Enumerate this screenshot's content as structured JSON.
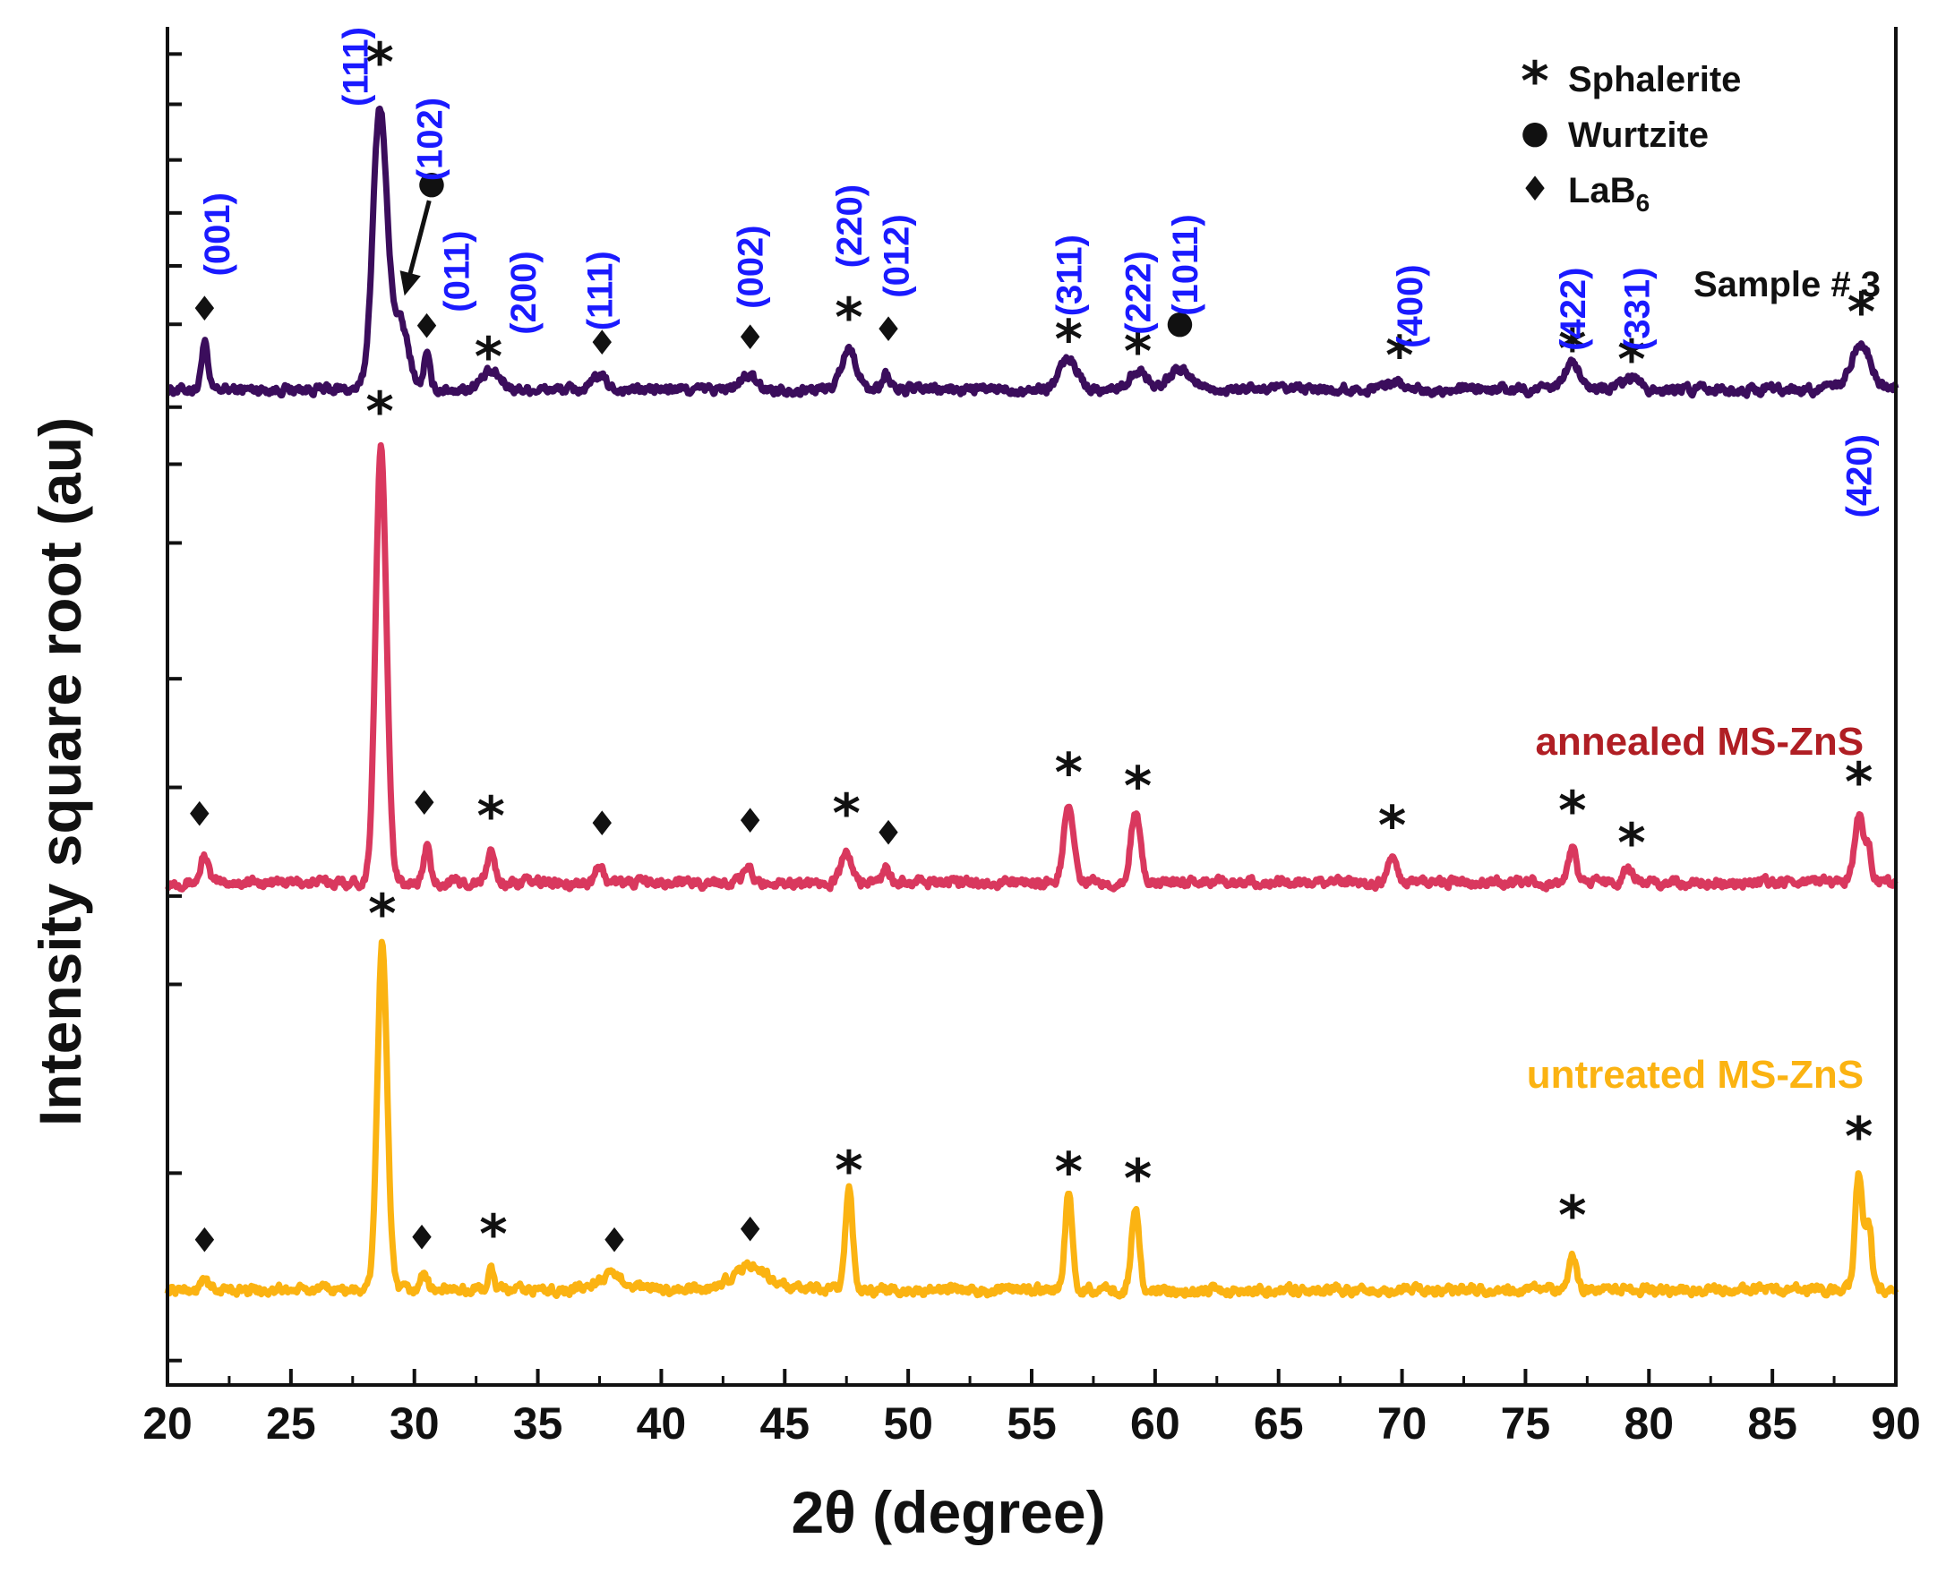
{
  "chart_data": {
    "type": "line",
    "title": "",
    "xlabel": "2θ (degree)",
    "ylabel": "Intensity square root (au)",
    "xlim": [
      20,
      90
    ],
    "xticks": [
      20,
      25,
      30,
      35,
      40,
      45,
      50,
      55,
      60,
      65,
      70,
      75,
      80,
      85,
      90
    ],
    "ylim": [
      0,
      100
    ],
    "legend": {
      "placement": "top-right",
      "entries": [
        {
          "symbol": "*",
          "label": "Sphalerite"
        },
        {
          "symbol": "●",
          "label": "Wurtzite"
        },
        {
          "symbol": "♦",
          "label": "LaB",
          "subscript": "6"
        }
      ]
    },
    "colors": {
      "sample3": "#3b0d5c",
      "annealed": "#d9385e",
      "untreated": "#fbb312",
      "miller": "#1a1aff",
      "annealed_label": "#b01e24",
      "untreated_label": "#fbb312",
      "axis": "#111111"
    },
    "series": [
      {
        "name": "Sample # 3",
        "baseline": 73.3,
        "color": "#3b0d5c",
        "peaks": [
          [
            21.5,
            3.5,
            0.12
          ],
          [
            28.6,
            20.5,
            0.28
          ],
          [
            29.4,
            5.0,
            0.35
          ],
          [
            30.5,
            2.5,
            0.12
          ],
          [
            33.1,
            1.2,
            0.4
          ],
          [
            37.5,
            1.0,
            0.25
          ],
          [
            43.5,
            1.0,
            0.3
          ],
          [
            47.6,
            3.0,
            0.3
          ],
          [
            49.1,
            1.2,
            0.15
          ],
          [
            56.5,
            2.3,
            0.35
          ],
          [
            59.3,
            1.4,
            0.35
          ],
          [
            61.0,
            1.4,
            0.5
          ],
          [
            69.6,
            0.6,
            0.35
          ],
          [
            76.9,
            2.0,
            0.3
          ],
          [
            79.3,
            0.8,
            0.3
          ],
          [
            88.6,
            3.3,
            0.4
          ]
        ]
      },
      {
        "name": "annealed MS-ZnS",
        "baseline": 37.0,
        "color": "#d9385e",
        "peaks": [
          [
            21.5,
            2.0,
            0.15
          ],
          [
            28.65,
            32.0,
            0.22
          ],
          [
            30.5,
            2.7,
            0.12
          ],
          [
            33.1,
            2.3,
            0.15
          ],
          [
            37.5,
            1.2,
            0.15
          ],
          [
            43.5,
            1.2,
            0.15
          ],
          [
            47.5,
            2.2,
            0.2
          ],
          [
            49.1,
            1.0,
            0.15
          ],
          [
            56.5,
            5.6,
            0.2
          ],
          [
            59.2,
            5.0,
            0.2
          ],
          [
            69.6,
            1.6,
            0.2
          ],
          [
            76.9,
            2.7,
            0.15
          ],
          [
            79.2,
            1.0,
            0.2
          ],
          [
            88.5,
            5.0,
            0.18
          ],
          [
            88.9,
            2.5,
            0.12
          ]
        ]
      },
      {
        "name": "untreated MS-ZnS",
        "baseline": 7.0,
        "color": "#fbb312",
        "peaks": [
          [
            21.5,
            1.0,
            0.12
          ],
          [
            28.7,
            25.5,
            0.2
          ],
          [
            30.4,
            1.4,
            0.12
          ],
          [
            33.1,
            1.5,
            0.12
          ],
          [
            38.0,
            1.0,
            0.6
          ],
          [
            43.6,
            1.8,
            0.7
          ],
          [
            47.6,
            7.4,
            0.15
          ],
          [
            56.5,
            7.0,
            0.15
          ],
          [
            59.2,
            6.2,
            0.15
          ],
          [
            76.9,
            2.5,
            0.15
          ],
          [
            88.5,
            8.6,
            0.15
          ],
          [
            88.9,
            5.0,
            0.12
          ]
        ]
      }
    ],
    "annotations": {
      "sample_label": "Sample # 3",
      "series_labels": [
        {
          "text": "annealed MS-ZnS",
          "x": 88.7,
          "y": 46.4,
          "color_key": "annealed_label"
        },
        {
          "text": "untreated MS-ZnS",
          "x": 88.7,
          "y": 21.9,
          "color_key": "untreated_label"
        }
      ],
      "miller_indices": [
        {
          "text": "(001)",
          "x": 22.0,
          "y": 87.8
        },
        {
          "text": "(111)",
          "x": 27.6,
          "y": 100.0
        },
        {
          "text": "(102)",
          "x": 30.6,
          "y": 94.8
        },
        {
          "text": "(011)",
          "x": 31.7,
          "y": 85.0
        },
        {
          "text": "(200)",
          "x": 34.4,
          "y": 83.5
        },
        {
          "text": "(111)",
          "x": 37.5,
          "y": 83.5
        },
        {
          "text": "(002)",
          "x": 43.6,
          "y": 85.4
        },
        {
          "text": "(220)",
          "x": 47.6,
          "y": 88.4
        },
        {
          "text": "(012)",
          "x": 49.5,
          "y": 86.2
        },
        {
          "text": "(311)",
          "x": 56.5,
          "y": 84.7
        },
        {
          "text": "(222)",
          "x": 59.3,
          "y": 83.5
        },
        {
          "text": "(1011)",
          "x": 61.2,
          "y": 86.2
        },
        {
          "text": "(400)",
          "x": 70.3,
          "y": 82.5
        },
        {
          "text": "(422)",
          "x": 76.9,
          "y": 82.3
        },
        {
          "text": "(331)",
          "x": 79.5,
          "y": 82.3
        },
        {
          "text": "(420)",
          "x": 88.5,
          "y": 70.0
        }
      ],
      "markers": [
        {
          "type": "diamond",
          "x": 21.5,
          "y": 79.3
        },
        {
          "type": "star",
          "x": 28.6,
          "y": 97.5
        },
        {
          "type": "dot",
          "x": 30.7,
          "y": 88.6
        },
        {
          "type": "diamond",
          "x": 30.5,
          "y": 78.0
        },
        {
          "type": "star",
          "x": 33.0,
          "y": 75.8
        },
        {
          "type": "diamond",
          "x": 37.6,
          "y": 76.8
        },
        {
          "type": "diamond",
          "x": 43.6,
          "y": 77.2
        },
        {
          "type": "star",
          "x": 47.6,
          "y": 78.7
        },
        {
          "type": "diamond",
          "x": 49.2,
          "y": 77.8
        },
        {
          "type": "star",
          "x": 56.5,
          "y": 77.1
        },
        {
          "type": "star",
          "x": 59.3,
          "y": 76.2
        },
        {
          "type": "dot",
          "x": 61.0,
          "y": 78.3
        },
        {
          "type": "star",
          "x": 69.9,
          "y": 75.9
        },
        {
          "type": "star",
          "x": 76.9,
          "y": 76.4
        },
        {
          "type": "star",
          "x": 79.3,
          "y": 75.6
        },
        {
          "type": "star",
          "x": 88.6,
          "y": 79.1
        },
        {
          "type": "star",
          "x": 28.6,
          "y": 71.8
        },
        {
          "type": "diamond",
          "x": 21.3,
          "y": 42.1
        },
        {
          "type": "diamond",
          "x": 30.4,
          "y": 42.9
        },
        {
          "type": "star",
          "x": 33.1,
          "y": 42.0
        },
        {
          "type": "diamond",
          "x": 37.6,
          "y": 41.4
        },
        {
          "type": "diamond",
          "x": 43.6,
          "y": 41.6
        },
        {
          "type": "star",
          "x": 47.5,
          "y": 42.2
        },
        {
          "type": "diamond",
          "x": 49.2,
          "y": 40.7
        },
        {
          "type": "star",
          "x": 56.5,
          "y": 45.2
        },
        {
          "type": "star",
          "x": 59.3,
          "y": 44.2
        },
        {
          "type": "star",
          "x": 69.6,
          "y": 41.3
        },
        {
          "type": "star",
          "x": 76.9,
          "y": 42.4
        },
        {
          "type": "star",
          "x": 79.3,
          "y": 40.0
        },
        {
          "type": "star",
          "x": 88.5,
          "y": 44.5
        },
        {
          "type": "star",
          "x": 28.7,
          "y": 34.8
        },
        {
          "type": "diamond",
          "x": 21.5,
          "y": 10.7
        },
        {
          "type": "diamond",
          "x": 30.3,
          "y": 10.9
        },
        {
          "type": "star",
          "x": 33.2,
          "y": 11.2
        },
        {
          "type": "diamond",
          "x": 38.1,
          "y": 10.7
        },
        {
          "type": "diamond",
          "x": 43.6,
          "y": 11.5
        },
        {
          "type": "star",
          "x": 47.6,
          "y": 15.9
        },
        {
          "type": "star",
          "x": 56.5,
          "y": 15.8
        },
        {
          "type": "star",
          "x": 59.3,
          "y": 15.3
        },
        {
          "type": "star",
          "x": 76.9,
          "y": 12.6
        },
        {
          "type": "star",
          "x": 88.5,
          "y": 18.4
        }
      ],
      "arrow": {
        "from": [
          30.6,
          87.2
        ],
        "to": [
          29.6,
          80.2
        ]
      }
    }
  }
}
